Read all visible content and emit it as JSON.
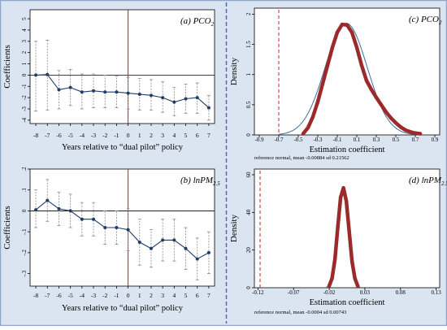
{
  "colors": {
    "frame": "#8fa6c8",
    "panel_bg": "#dbe5f1",
    "plot_bg": "#ffffff",
    "divider": "#4d6aa0",
    "coef_line": "#1f3d66",
    "ci": "#8a8a8a",
    "policy_line": "#b0203a",
    "density": "#9b2b2b",
    "normal": "#3f6f9f",
    "ref_dashed": "#cc2222",
    "zero": "#000000"
  },
  "chart_data": [
    {
      "type": "line",
      "id": "a",
      "panel_label": "(a) PCO",
      "panel_label_sub": "2",
      "ylabel": "Coefficients",
      "xlabel": "Years relative to  “dual pilot” policy",
      "x": [
        -8,
        -7,
        -6,
        -5,
        -4,
        -3,
        -2,
        -1,
        0,
        1,
        2,
        3,
        4,
        5,
        6,
        7
      ],
      "x_ticks": [
        "-8",
        "-7",
        "-6",
        "-5",
        "-4",
        "-3",
        "-2",
        "-1",
        "0",
        "1",
        "2",
        "3",
        "4",
        "5",
        "6",
        "7"
      ],
      "y": [
        0.0,
        0.05,
        -1.3,
        -1.1,
        -1.5,
        -1.4,
        -1.5,
        -1.5,
        -1.6,
        -1.7,
        -1.8,
        -2.0,
        -2.4,
        -2.1,
        -2.0,
        -2.9
      ],
      "ci_low": [
        -3.2,
        -3.1,
        -3.0,
        -2.7,
        -3.0,
        -2.9,
        -2.9,
        -2.9,
        -3.0,
        -3.1,
        -3.1,
        -3.3,
        -3.6,
        -3.4,
        -3.4,
        -4.0
      ],
      "ci_high": [
        3.0,
        3.1,
        0.4,
        0.5,
        0.1,
        0.1,
        0.0,
        -0.1,
        -0.2,
        -0.3,
        -0.4,
        -0.6,
        -1.1,
        -0.8,
        -0.7,
        -1.8
      ],
      "y_ticks": [
        -4,
        -3,
        -2,
        -1,
        0,
        1,
        2,
        3,
        4,
        5
      ],
      "y_tick_labels": [
        "-4",
        "-3",
        "-2",
        "-1",
        "0",
        "1",
        "2",
        "3",
        "4",
        "5"
      ],
      "ylim": [
        -4.3,
        5.8
      ],
      "xlim": [
        -8.5,
        7.5
      ],
      "policy_x": 0
    },
    {
      "type": "line",
      "id": "b",
      "panel_label": "(b) lnPM",
      "panel_label_sub": "2.5",
      "ylabel": "Coefficients",
      "xlabel": "Years relative to  “dual pilot” policy",
      "x": [
        -8,
        -7,
        -6,
        -5,
        -4,
        -3,
        -2,
        -1,
        0,
        1,
        2,
        3,
        4,
        5,
        6,
        7
      ],
      "x_ticks": [
        "-8",
        "-7",
        "-6",
        "-5",
        "-4",
        "-3",
        "-2",
        "-1",
        "0",
        "1",
        "2",
        "3",
        "4",
        "5",
        "6",
        "7"
      ],
      "y": [
        0.005,
        0.05,
        0.01,
        0.0,
        -0.04,
        -0.04,
        -0.08,
        -0.08,
        -0.09,
        -0.15,
        -0.18,
        -0.14,
        -0.14,
        -0.18,
        -0.23,
        -0.2
      ],
      "ci_low": [
        -0.08,
        -0.05,
        -0.07,
        -0.08,
        -0.12,
        -0.12,
        -0.16,
        -0.16,
        -0.19,
        -0.26,
        -0.27,
        -0.24,
        -0.24,
        -0.28,
        -0.33,
        -0.3
      ],
      "ci_high": [
        0.1,
        0.15,
        0.09,
        0.08,
        0.04,
        0.04,
        0.0,
        0.0,
        0.01,
        -0.04,
        -0.09,
        -0.04,
        -0.04,
        -0.08,
        -0.13,
        -0.1
      ],
      "y_ticks": [
        -0.3,
        -0.2,
        -0.1,
        0.0,
        0.1,
        0.2
      ],
      "y_tick_labels": [
        "-.3",
        "-.2",
        "-.1",
        "0",
        ".1",
        ".2"
      ],
      "ylim": [
        -0.36,
        0.2
      ],
      "xlim": [
        -8.5,
        7.5
      ],
      "policy_x": 0
    },
    {
      "type": "area",
      "id": "c",
      "panel_label": "(c) PCO",
      "panel_label_sub": "2",
      "ylabel": "Density",
      "xlabel": "Estimation coefficient",
      "note": "reference normal, mean -0.00884 sd 0.21562",
      "x_ticks": [
        -0.9,
        -0.7,
        -0.5,
        -0.3,
        -0.1,
        0.1,
        0.3,
        0.5,
        0.7,
        0.9
      ],
      "x_tick_labels": [
        "-0.9",
        "-0.7",
        "-0.5",
        "-0.3",
        "-0.1",
        "0.1",
        "0.3",
        "0.5",
        "0.7",
        "0.9"
      ],
      "xlim": [
        -0.95,
        0.95
      ],
      "y_ticks": [
        0,
        0.5,
        1,
        1.5,
        2
      ],
      "ylim": [
        0,
        2.1
      ],
      "ref_line_x": -0.7,
      "normal_mean": -0.00884,
      "normal_sd": 0.21562,
      "density": {
        "x": [
          -0.45,
          -0.4,
          -0.35,
          -0.3,
          -0.25,
          -0.2,
          -0.15,
          -0.1,
          -0.05,
          0.0,
          0.05,
          0.1,
          0.15,
          0.2,
          0.25,
          0.3,
          0.35,
          0.4,
          0.45,
          0.5,
          0.55,
          0.6,
          0.65,
          0.7,
          0.75
        ],
        "y": [
          0.02,
          0.12,
          0.3,
          0.55,
          0.85,
          1.15,
          1.45,
          1.7,
          1.83,
          1.82,
          1.7,
          1.45,
          1.15,
          0.9,
          0.75,
          0.62,
          0.5,
          0.38,
          0.28,
          0.2,
          0.13,
          0.08,
          0.05,
          0.03,
          0.02
        ]
      }
    },
    {
      "type": "area",
      "id": "d",
      "panel_label": "(d) lnPM",
      "panel_label_sub": "2.5",
      "ylabel": "Density",
      "xlabel": "Estimation coefficient",
      "note": "reference normal, mean -0.0004 sd 0.00743",
      "x_ticks": [
        -0.12,
        -0.07,
        -0.02,
        0.03,
        0.08,
        0.13
      ],
      "x_tick_labels": [
        "-0.12",
        "-0.07",
        "-0.02",
        "0.03",
        "0.08",
        "0.13"
      ],
      "xlim": [
        -0.125,
        0.135
      ],
      "y_ticks": [
        0,
        20,
        40,
        60
      ],
      "ylim": [
        0,
        63
      ],
      "ref_line_x": -0.117,
      "normal_mean": -0.0004,
      "normal_sd": 0.00743,
      "density": {
        "x": [
          -0.02,
          -0.016,
          -0.012,
          -0.008,
          -0.004,
          0.0,
          0.004,
          0.008,
          0.012,
          0.016,
          0.02
        ],
        "y": [
          1,
          5,
          15,
          32,
          48,
          53,
          46,
          30,
          14,
          5,
          1
        ]
      }
    }
  ]
}
